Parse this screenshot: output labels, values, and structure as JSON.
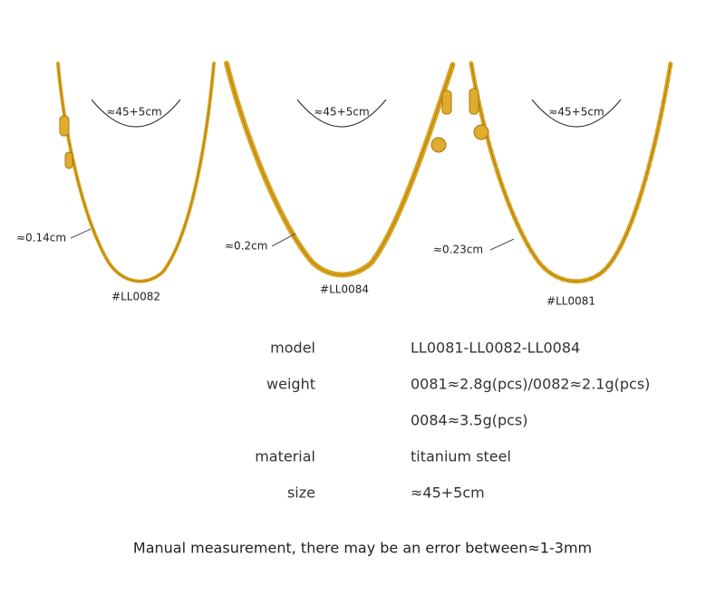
{
  "necklaces": [
    {
      "length": "≈45+5cm",
      "width": "≈0.14cm",
      "code": "#LL0082"
    },
    {
      "length": "≈45+5cm",
      "width": "≈0.2cm",
      "code": "#LL0084"
    },
    {
      "length": "≈45+5cm",
      "width": "≈0.23cm",
      "code": "#LL0081"
    }
  ],
  "specs": [
    {
      "label": "model",
      "values": [
        "LL0081-LL0082-LL0084"
      ]
    },
    {
      "label": "weight",
      "values": [
        "0081≈2.8g(pcs)/0082≈2.1g(pcs)",
        "0084≈3.5g(pcs)"
      ]
    },
    {
      "label": "material",
      "values": [
        "titanium steel"
      ]
    },
    {
      "label": "size",
      "values": [
        "≈45+5cm"
      ]
    }
  ],
  "note": "Manual measurement, there may be an error between≈1-3mm"
}
